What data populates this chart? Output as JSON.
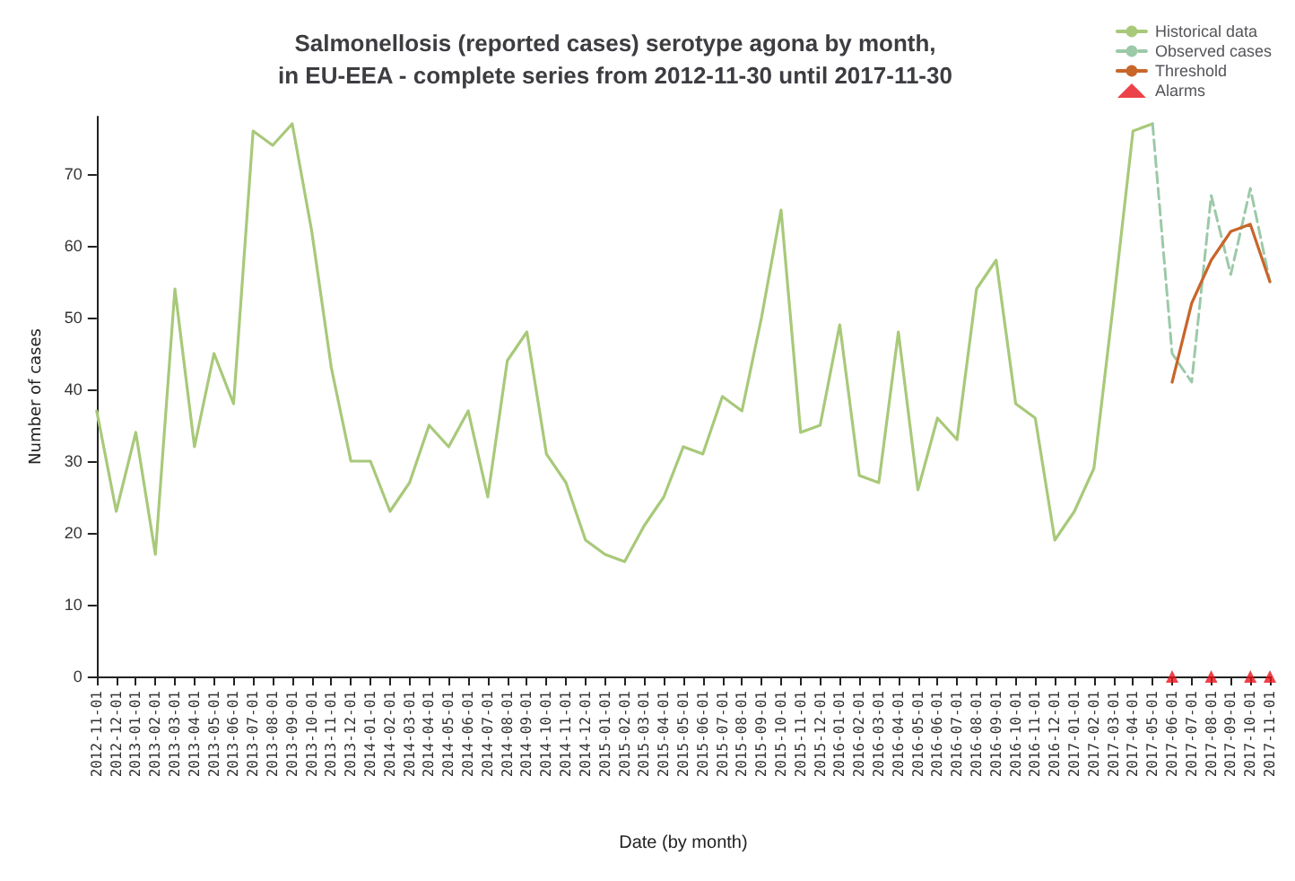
{
  "chart_data": {
    "type": "line",
    "title": "Salmonellosis (reported cases) serotype agona by month,\nin EU-EEA - complete series from 2012-11-30 until 2017-11-30",
    "xlabel": "Date (by month)",
    "ylabel": "Number of cases",
    "categories": [
      "2012-11-01",
      "2012-12-01",
      "2013-01-01",
      "2013-02-01",
      "2013-03-01",
      "2013-04-01",
      "2013-05-01",
      "2013-06-01",
      "2013-07-01",
      "2013-08-01",
      "2013-09-01",
      "2013-10-01",
      "2013-11-01",
      "2013-12-01",
      "2014-01-01",
      "2014-02-01",
      "2014-03-01",
      "2014-04-01",
      "2014-05-01",
      "2014-06-01",
      "2014-07-01",
      "2014-08-01",
      "2014-09-01",
      "2014-10-01",
      "2014-11-01",
      "2014-12-01",
      "2015-01-01",
      "2015-02-01",
      "2015-03-01",
      "2015-04-01",
      "2015-05-01",
      "2015-06-01",
      "2015-07-01",
      "2015-08-01",
      "2015-09-01",
      "2015-10-01",
      "2015-11-01",
      "2015-12-01",
      "2016-01-01",
      "2016-02-01",
      "2016-03-01",
      "2016-04-01",
      "2016-05-01",
      "2016-06-01",
      "2016-07-01",
      "2016-08-01",
      "2016-09-01",
      "2016-10-01",
      "2016-11-01",
      "2016-12-01",
      "2017-01-01",
      "2017-02-01",
      "2017-03-01",
      "2017-04-01",
      "2017-05-01",
      "2017-06-01",
      "2017-07-01",
      "2017-08-01",
      "2017-09-01",
      "2017-10-01",
      "2017-11-01"
    ],
    "series": [
      {
        "name": "Historical data",
        "type": "line",
        "color": "#a8c97a",
        "line_style": "solid",
        "values": [
          37,
          23,
          34,
          17,
          54,
          32,
          45,
          38,
          76,
          74,
          77,
          62,
          43,
          30,
          30,
          23,
          27,
          35,
          32,
          37,
          25,
          44,
          48,
          31,
          27,
          19,
          17,
          16,
          21,
          25,
          32,
          31,
          39,
          37,
          50,
          65,
          34,
          35,
          49,
          28,
          27,
          48,
          26,
          36,
          33,
          54,
          58,
          38,
          36,
          19,
          23,
          29,
          52,
          76,
          77,
          null,
          null,
          null,
          null,
          null,
          null
        ]
      },
      {
        "name": "Observed cases",
        "type": "line",
        "color": "#9cc9a8",
        "line_style": "dashed",
        "values": [
          null,
          null,
          null,
          null,
          null,
          null,
          null,
          null,
          null,
          null,
          null,
          null,
          null,
          null,
          null,
          null,
          null,
          null,
          null,
          null,
          null,
          null,
          null,
          null,
          null,
          null,
          null,
          null,
          null,
          null,
          null,
          null,
          null,
          null,
          null,
          null,
          null,
          null,
          null,
          null,
          null,
          null,
          null,
          null,
          null,
          null,
          null,
          null,
          null,
          null,
          null,
          null,
          null,
          null,
          77,
          45,
          41,
          67,
          56,
          68,
          55
        ]
      },
      {
        "name": "Threshold",
        "type": "line",
        "color": "#c8662a",
        "line_style": "solid",
        "values": [
          null,
          null,
          null,
          null,
          null,
          null,
          null,
          null,
          null,
          null,
          null,
          null,
          null,
          null,
          null,
          null,
          null,
          null,
          null,
          null,
          null,
          null,
          null,
          null,
          null,
          null,
          null,
          null,
          null,
          null,
          null,
          null,
          null,
          null,
          null,
          null,
          null,
          null,
          null,
          null,
          null,
          null,
          null,
          null,
          null,
          null,
          null,
          null,
          null,
          null,
          null,
          null,
          null,
          null,
          null,
          41,
          52,
          58,
          62,
          63,
          55
        ]
      },
      {
        "name": "Alarms",
        "type": "scatter",
        "color": "#e8131b",
        "marker": "triangle",
        "values": [
          null,
          null,
          null,
          null,
          null,
          null,
          null,
          null,
          null,
          null,
          null,
          null,
          null,
          null,
          null,
          null,
          null,
          null,
          null,
          null,
          null,
          null,
          null,
          null,
          null,
          null,
          null,
          null,
          null,
          null,
          null,
          null,
          null,
          null,
          null,
          null,
          null,
          null,
          null,
          null,
          null,
          null,
          null,
          null,
          null,
          null,
          null,
          null,
          null,
          null,
          null,
          null,
          null,
          null,
          null,
          0,
          null,
          0,
          null,
          0,
          0
        ]
      }
    ],
    "ylim": [
      0,
      78
    ],
    "yticks": [
      0,
      10,
      20,
      30,
      40,
      50,
      60,
      70
    ],
    "grid": false,
    "legend": "top right"
  }
}
